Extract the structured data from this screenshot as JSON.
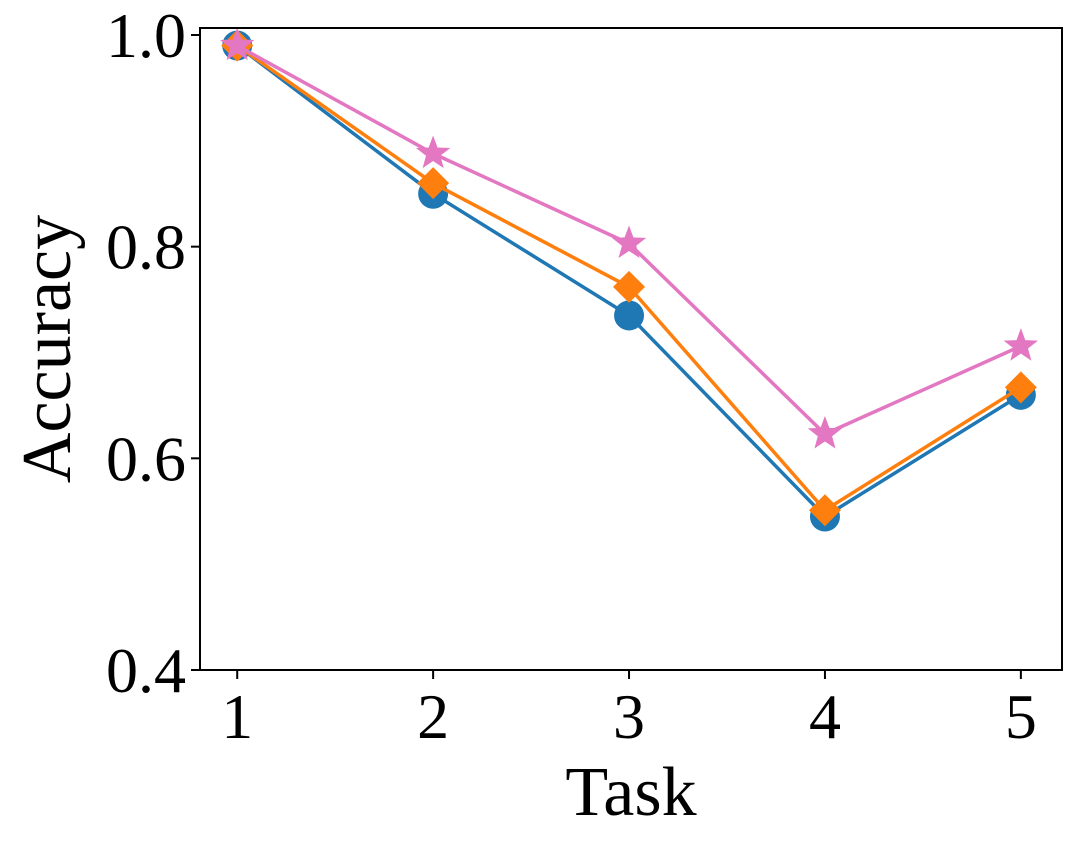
{
  "chart_data": {
    "type": "line",
    "title": "",
    "xlabel": "Task",
    "ylabel": "Accuracy",
    "x": [
      1,
      2,
      3,
      4,
      5
    ],
    "xticks": [
      "1",
      "2",
      "3",
      "4",
      "5"
    ],
    "ylim": [
      0.4,
      1.0
    ],
    "yticks": [
      "0.4",
      "0.6",
      "0.8",
      "1.0"
    ],
    "grid": false,
    "series": [
      {
        "values": [
          0.99,
          0.85,
          0.735,
          0.545,
          0.66
        ],
        "color": "#1f77b4",
        "marker": "circle"
      },
      {
        "values": [
          0.99,
          0.86,
          0.762,
          0.551,
          0.667
        ],
        "color": "#ff7f0e",
        "marker": "diamond"
      },
      {
        "values": [
          0.99,
          0.888,
          0.803,
          0.623,
          0.706
        ],
        "color": "#e377c2",
        "marker": "star"
      }
    ]
  }
}
